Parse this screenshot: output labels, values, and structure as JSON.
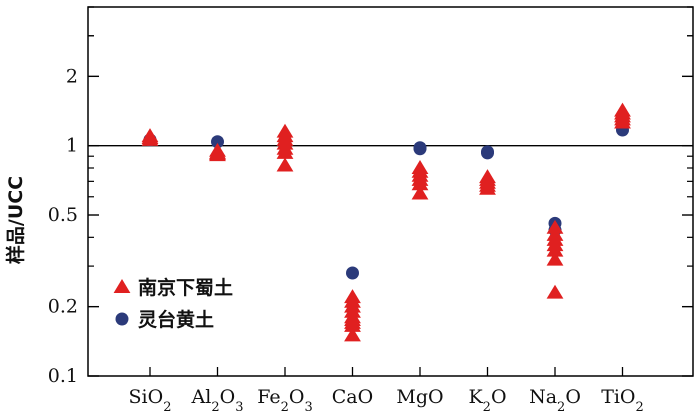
{
  "chart_data": {
    "type": "scatter",
    "ylabel": "样品/UCC",
    "yscale": "log",
    "ylim": [
      0.1,
      4
    ],
    "y_ticks": [
      {
        "value": 0.1,
        "label": "0.1"
      },
      {
        "value": 0.2,
        "label": "0.2"
      },
      {
        "value": 0.5,
        "label": "0.5"
      },
      {
        "value": 1,
        "label": "1"
      },
      {
        "value": 2,
        "label": "2"
      }
    ],
    "reference_line": 1,
    "categories": [
      {
        "base": "SiO",
        "sub": "2"
      },
      {
        "base": "Al",
        "sub": "2",
        "base2": "O",
        "sub2": "3"
      },
      {
        "base": "Fe",
        "sub": "2",
        "base2": "O",
        "sub2": "3"
      },
      {
        "base": "CaO"
      },
      {
        "base": "MgO"
      },
      {
        "base": "K",
        "sub": "2",
        "base2": "O"
      },
      {
        "base": "Na",
        "sub": "2",
        "base2": "O"
      },
      {
        "base": "TiO",
        "sub": "2"
      }
    ],
    "legend": {
      "position": "lower-left"
    },
    "series": [
      {
        "name": "南京下蜀土",
        "marker": "triangle",
        "color": "#e02020",
        "values": [
          [
            1.1,
            1.08,
            1.06
          ],
          [
            0.95,
            0.93,
            0.92,
            0.91
          ],
          [
            1.15,
            1.1,
            1.06,
            1.02,
            0.97,
            0.93,
            0.82
          ],
          [
            0.22,
            0.21,
            0.2,
            0.19,
            0.18,
            0.175,
            0.17,
            0.165,
            0.15
          ],
          [
            0.8,
            0.77,
            0.74,
            0.71,
            0.68,
            0.62
          ],
          [
            0.73,
            0.71,
            0.69,
            0.67,
            0.65
          ],
          [
            0.44,
            0.41,
            0.39,
            0.37,
            0.35,
            0.32,
            0.23
          ],
          [
            1.42,
            1.38,
            1.34,
            1.3,
            1.26
          ]
        ]
      },
      {
        "name": "灵台黄土",
        "marker": "circle",
        "color": "#2b3a7a",
        "values": [
          [
            1.06
          ],
          [
            1.04
          ],
          [
            1.05
          ],
          [
            0.28
          ],
          [
            0.98,
            0.97
          ],
          [
            0.94,
            0.93
          ],
          [
            0.46,
            0.43
          ],
          [
            1.17
          ]
        ]
      }
    ]
  }
}
